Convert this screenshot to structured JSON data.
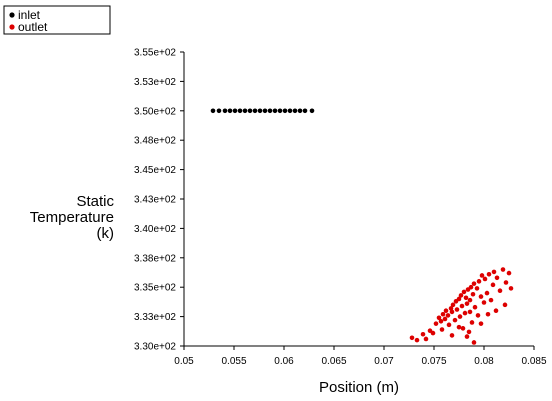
{
  "chart_data": {
    "type": "scatter",
    "title": "",
    "xlabel": "Position (m)",
    "ylabel_lines": [
      "Static",
      "Temperature",
      "(k)"
    ],
    "xlim": [
      0.05,
      0.085
    ],
    "ylim": [
      330.0,
      355.0
    ],
    "x_ticks": [
      0.05,
      0.055,
      0.06,
      0.065,
      0.07,
      0.075,
      0.08,
      0.085
    ],
    "x_tick_labels": [
      "0.05",
      "0.055",
      "0.06",
      "0.065",
      "0.07",
      "0.075",
      "0.08",
      "0.085"
    ],
    "y_ticks": [
      330.0,
      332.5,
      335.0,
      337.5,
      340.0,
      342.5,
      345.0,
      347.5,
      350.0,
      352.5,
      355.0
    ],
    "y_tick_labels": [
      "3.30e+02",
      "3.33e+02",
      "3.35e+02",
      "3.38e+02",
      "3.40e+02",
      "3.43e+02",
      "3.45e+02",
      "3.48e+02",
      "3.50e+02",
      "3.53e+02",
      "3.55e+02"
    ],
    "grid": false,
    "legend_position": "top-left",
    "series": [
      {
        "name": "inlet",
        "color": "#000000",
        "x": [
          0.0529,
          0.0535,
          0.0541,
          0.0546,
          0.0551,
          0.0556,
          0.0561,
          0.0566,
          0.0571,
          0.0576,
          0.0581,
          0.0586,
          0.0591,
          0.0596,
          0.0601,
          0.0606,
          0.0611,
          0.0616,
          0.0621,
          0.0628
        ],
        "y": [
          350.0,
          350.0,
          350.0,
          350.0,
          350.0,
          350.0,
          350.0,
          350.0,
          350.0,
          350.0,
          350.0,
          350.0,
          350.0,
          350.0,
          350.0,
          350.0,
          350.0,
          350.0,
          350.0,
          350.0
        ]
      },
      {
        "name": "outlet",
        "color": "#dd0000",
        "x": [
          0.0728,
          0.0733,
          0.0739,
          0.0742,
          0.0746,
          0.0749,
          0.0752,
          0.0755,
          0.0757,
          0.0759,
          0.0761,
          0.0762,
          0.0764,
          0.0765,
          0.0767,
          0.0768,
          0.0769,
          0.0771,
          0.0772,
          0.0773,
          0.0775,
          0.0776,
          0.0777,
          0.0778,
          0.0779,
          0.078,
          0.0781,
          0.0782,
          0.0783,
          0.0784,
          0.0785,
          0.0786,
          0.0787,
          0.0788,
          0.0789,
          0.079,
          0.0791,
          0.0793,
          0.0794,
          0.0795,
          0.0797,
          0.0798,
          0.08,
          0.0801,
          0.0803,
          0.0805,
          0.0807,
          0.0809,
          0.081,
          0.0813,
          0.0816,
          0.0819,
          0.0822,
          0.0825,
          0.0827,
          0.0775,
          0.0768,
          0.0783,
          0.079,
          0.0797,
          0.0804,
          0.0812,
          0.0821,
          0.0758,
          0.0786
        ],
        "y": [
          330.7,
          330.5,
          331.0,
          330.6,
          331.3,
          331.1,
          331.9,
          332.4,
          332.1,
          332.7,
          332.3,
          333.0,
          332.6,
          331.8,
          333.2,
          332.9,
          333.5,
          332.2,
          333.8,
          333.1,
          334.0,
          332.5,
          334.3,
          333.4,
          331.5,
          334.6,
          332.8,
          334.1,
          333.6,
          334.8,
          331.2,
          333.9,
          335.0,
          332.0,
          334.4,
          335.3,
          333.3,
          334.9,
          332.6,
          335.5,
          334.2,
          336.0,
          333.7,
          335.7,
          334.5,
          336.1,
          333.9,
          335.2,
          336.3,
          335.8,
          334.7,
          336.5,
          335.4,
          336.2,
          334.9,
          331.6,
          330.9,
          330.8,
          330.3,
          331.9,
          332.7,
          333.0,
          333.5,
          331.4,
          332.9
        ]
      }
    ]
  }
}
